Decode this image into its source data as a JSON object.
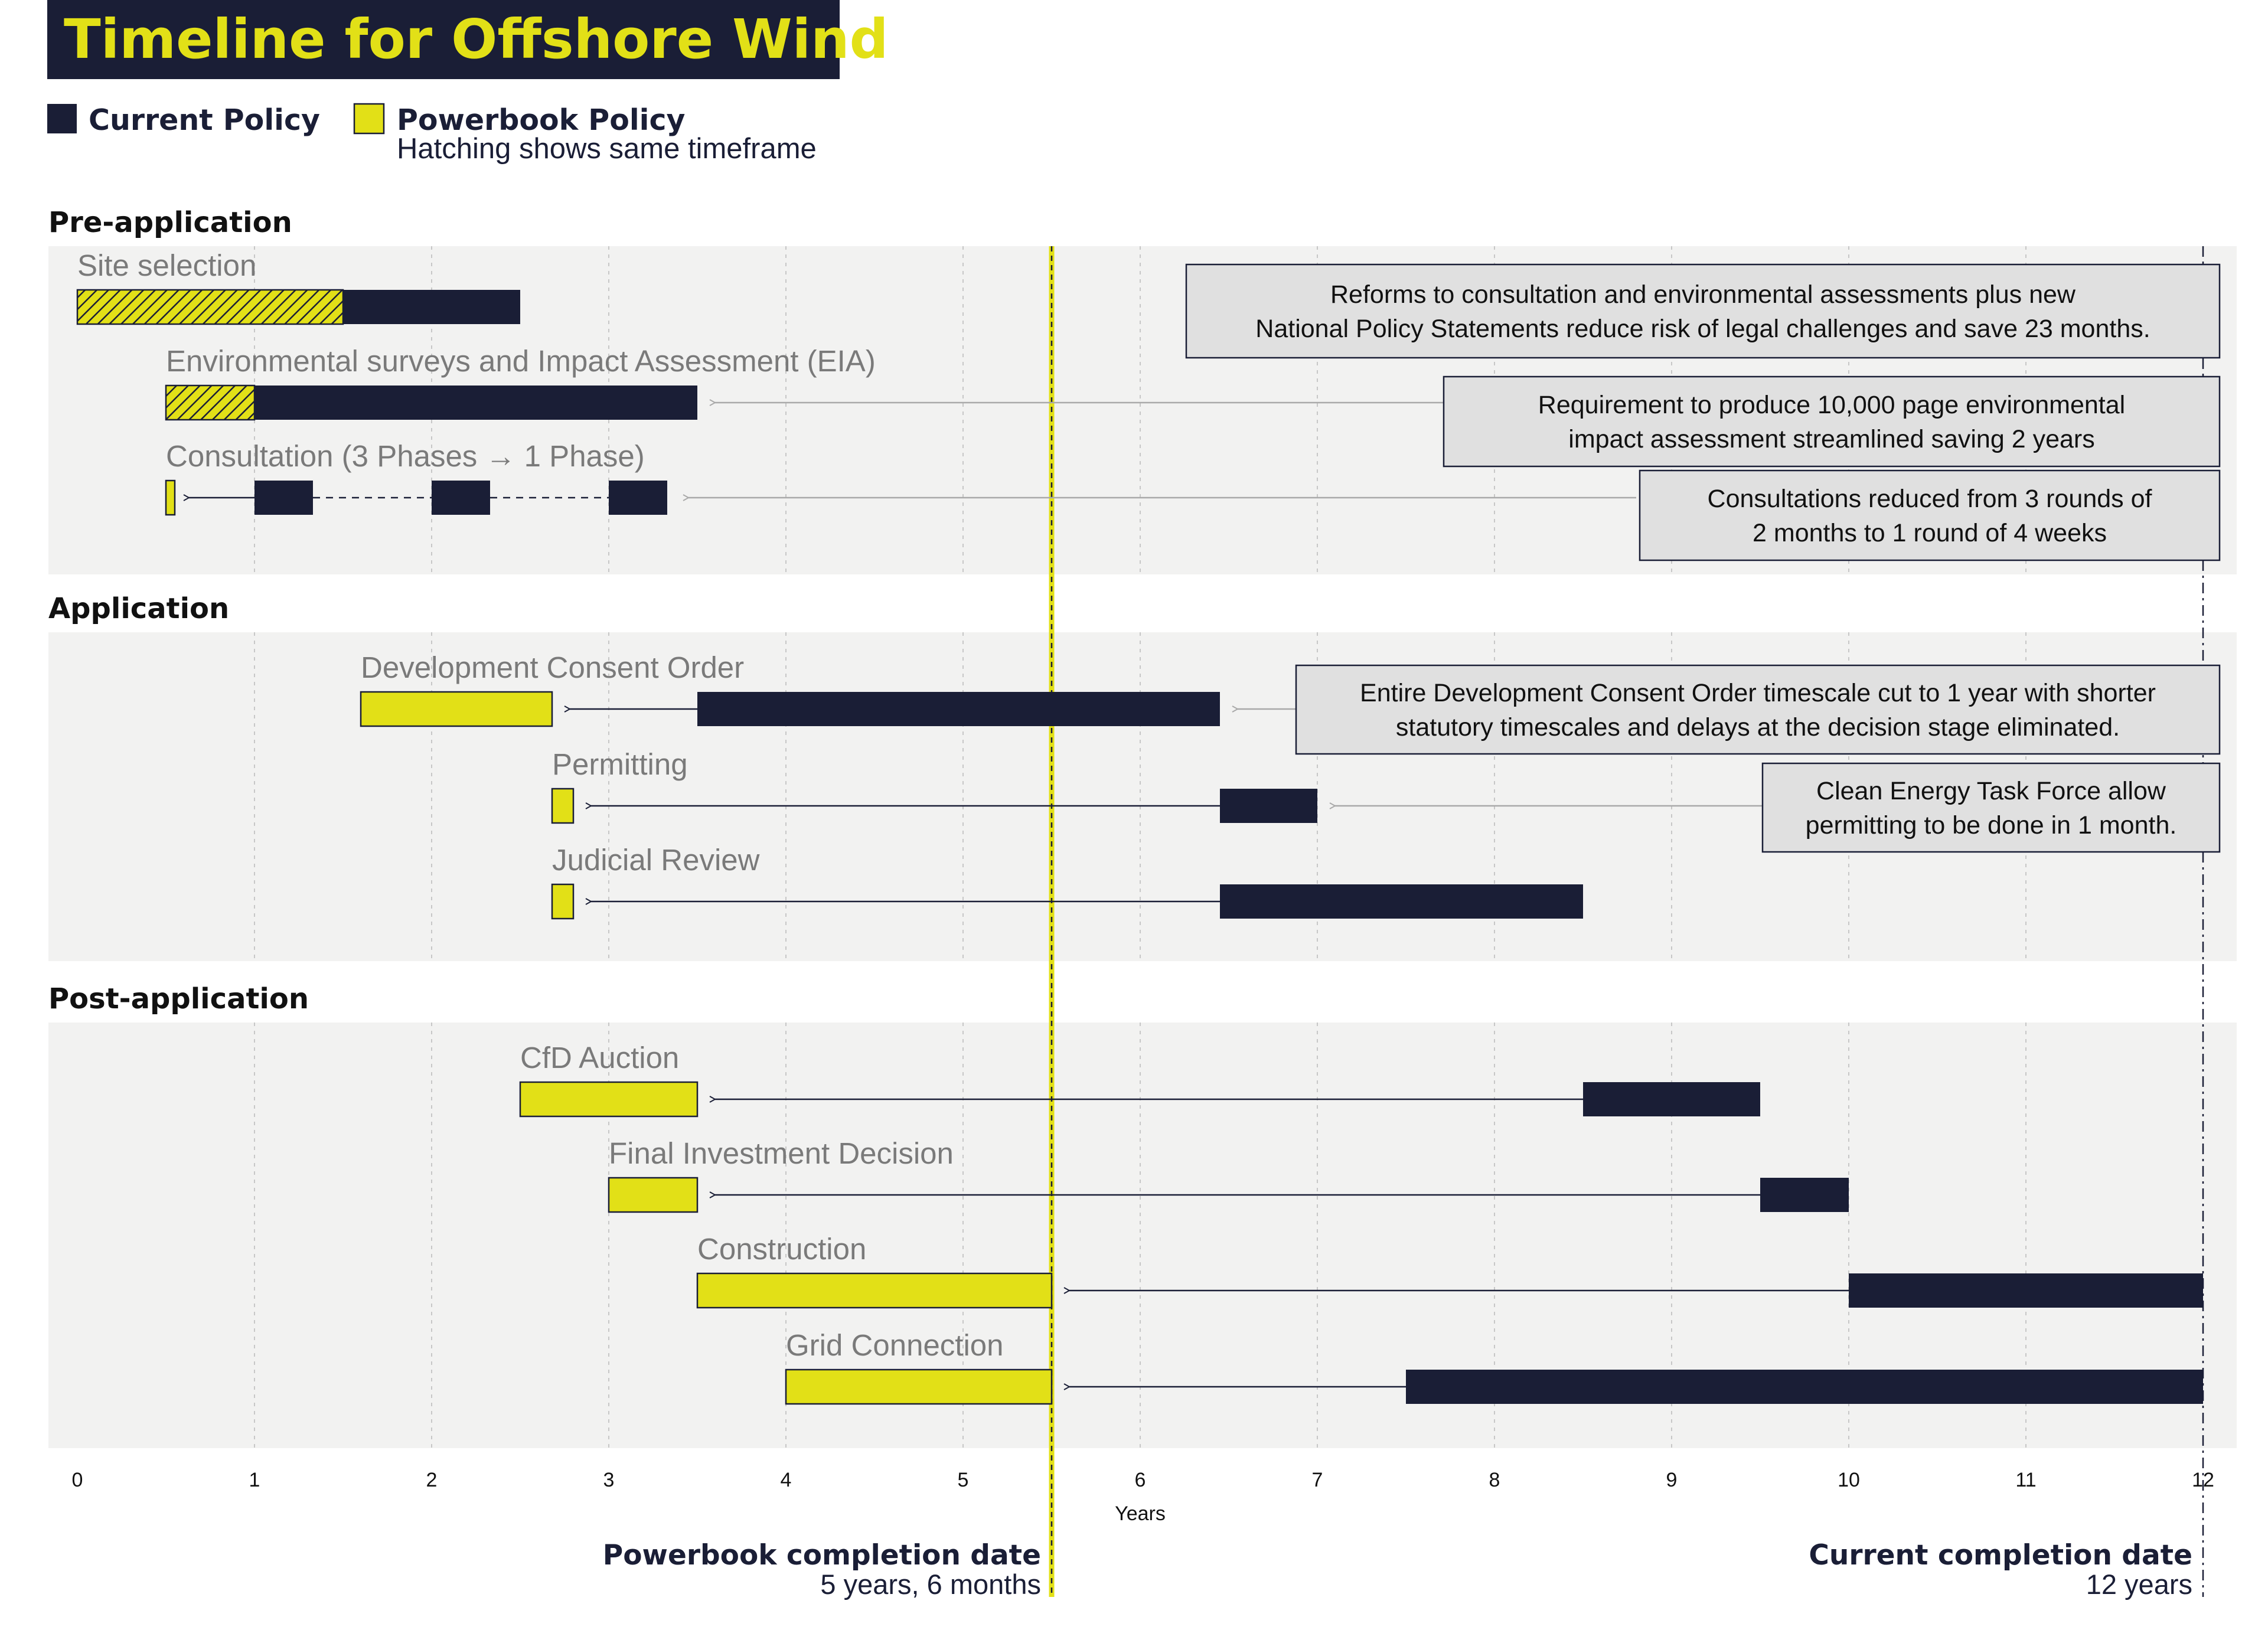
{
  "chart_data": {
    "type": "gantt",
    "title": "Timeline for Offshore Wind",
    "xlabel": "Years",
    "xlim": [
      0,
      12
    ],
    "xticks": [
      0,
      1,
      2,
      3,
      4,
      5,
      6,
      7,
      8,
      9,
      10,
      11,
      12
    ],
    "grid": true,
    "legend": {
      "placement": "top-left",
      "items": [
        {
          "label": "Current Policy",
          "sublabel": "",
          "color": "#1a1e36"
        },
        {
          "label": "Powerbook Policy",
          "sublabel": "Hatching shows same timeframe",
          "color": "#e2e017"
        }
      ]
    },
    "sections": [
      {
        "name": "Pre-application",
        "tasks": [
          {
            "label": "Site selection",
            "current": [
              [
                0,
                2.5
              ]
            ],
            "powerbook": [],
            "same_timeframe": [
              0,
              1.5
            ]
          },
          {
            "label": "Environmental surveys and Impact Assessment (EIA)",
            "current": [
              [
                0.5,
                3.5
              ]
            ],
            "powerbook": [],
            "same_timeframe": [
              0.5,
              1.0
            ],
            "arrow_from": 7.8,
            "arrow_to": 3.6,
            "arrow_style": "grey"
          },
          {
            "label": "Consultation (3 Phases → 1 Phase)",
            "current": [
              [
                1.0,
                1.33
              ],
              [
                2.0,
                2.33
              ],
              [
                3.0,
                3.33
              ]
            ],
            "powerbook": [
              [
                0.5,
                0.55
              ]
            ],
            "dashed_connector": true,
            "arrow_from": 1.0,
            "arrow_to": 0.63,
            "arrow_style": "dark",
            "note_arrow_from": 8.8,
            "note_arrow_to": 3.45
          }
        ]
      },
      {
        "name": "Application",
        "tasks": [
          {
            "label": "Development Consent Order",
            "current": [
              [
                3.5,
                6.45
              ]
            ],
            "powerbook": [
              [
                1.6,
                2.68
              ]
            ],
            "arrow_from": 3.5,
            "arrow_to": 2.78,
            "arrow_style": "dark",
            "note_arrow_from": 6.9,
            "note_arrow_to": 6.55
          },
          {
            "label": "Permitting",
            "current": [
              [
                6.45,
                7.0
              ]
            ],
            "powerbook": [
              [
                2.68,
                2.8
              ]
            ],
            "arrow_from": 6.45,
            "arrow_to": 2.9,
            "arrow_style": "dark",
            "note_arrow_from": 10.0,
            "note_arrow_to": 7.1
          },
          {
            "label": "Judicial Review",
            "current": [
              [
                6.45,
                8.5
              ]
            ],
            "powerbook": [
              [
                2.68,
                2.8
              ]
            ],
            "arrow_from": 6.45,
            "arrow_to": 2.9,
            "arrow_style": "dark"
          }
        ]
      },
      {
        "name": "Post-application",
        "tasks": [
          {
            "label": "CfD Auction",
            "current": [
              [
                8.5,
                9.5
              ]
            ],
            "powerbook": [
              [
                2.5,
                3.5
              ]
            ],
            "arrow_from": 8.5,
            "arrow_to": 3.6,
            "arrow_style": "dark"
          },
          {
            "label": "Final Investment Decision",
            "current": [
              [
                9.5,
                10.0
              ]
            ],
            "powerbook": [
              [
                3.0,
                3.5
              ]
            ],
            "arrow_from": 9.5,
            "arrow_to": 3.6,
            "arrow_style": "dark"
          },
          {
            "label": "Construction",
            "current": [
              [
                10.0,
                12.0
              ]
            ],
            "powerbook": [
              [
                3.5,
                5.5
              ]
            ],
            "arrow_from": 10.0,
            "arrow_to": 5.6,
            "arrow_style": "dark"
          },
          {
            "label": "Grid Connection",
            "current": [
              [
                7.5,
                12.0
              ]
            ],
            "powerbook": [
              [
                4.0,
                5.5
              ]
            ],
            "arrow_from": 7.5,
            "arrow_to": 5.6,
            "arrow_style": "dark"
          }
        ]
      }
    ],
    "annotations": [
      {
        "lines": [
          "Reforms to consultation and environmental assessments plus new",
          "National Policy Statements reduce risk of legal challenges and save 23 months."
        ]
      },
      {
        "lines": [
          "Requirement to produce 10,000 page environmental",
          "impact assessment streamlined saving 2 years"
        ]
      },
      {
        "lines": [
          "Consultations reduced from 3 rounds of",
          "2 months to 1 round of 4 weeks"
        ]
      },
      {
        "lines": [
          "Entire Development Consent Order timescale cut to 1 year with shorter",
          "statutory timescales and delays at the decision stage eliminated."
        ]
      },
      {
        "lines": [
          "Clean Energy Task Force allow",
          "permitting to be done in 1 month."
        ]
      }
    ],
    "completion_markers": [
      {
        "value": 5.5,
        "title": "Powerbook completion date",
        "subtitle": "5 years, 6 months",
        "color": "#e2e017"
      },
      {
        "value": 12,
        "title": "Current completion date",
        "subtitle": "12 years",
        "color": "#1a1e36"
      }
    ]
  },
  "colors": {
    "current": "#1a1e36",
    "powerbook": "#e2e017",
    "panel": "#f2f2f1",
    "note": "#e0e0e0"
  }
}
